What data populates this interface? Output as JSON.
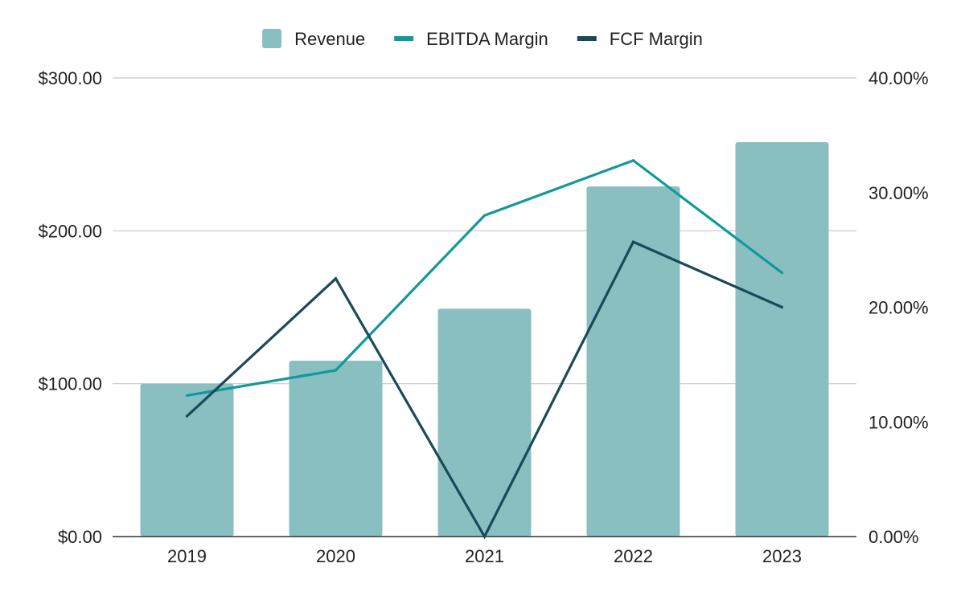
{
  "chart_data": {
    "type": "bar",
    "categories": [
      "2019",
      "2020",
      "2021",
      "2022",
      "2023"
    ],
    "series": [
      {
        "name": "Revenue",
        "kind": "bar",
        "axis": "left",
        "values": [
          100,
          115,
          149,
          229,
          258
        ]
      },
      {
        "name": "EBITDA Margin",
        "kind": "line",
        "axis": "right",
        "values": [
          12.3,
          14.5,
          28.0,
          32.8,
          23.0
        ]
      },
      {
        "name": "FCF Margin",
        "kind": "line",
        "axis": "right",
        "values": [
          10.5,
          22.5,
          0.0,
          25.7,
          20.0
        ]
      }
    ],
    "y_left": {
      "range": [
        0,
        300
      ],
      "ticks": [
        0,
        100,
        200,
        300
      ],
      "tick_labels": [
        "$0.00",
        "$100.00",
        "$200.00",
        "$300.00"
      ]
    },
    "y_right": {
      "range": [
        0,
        40
      ],
      "ticks": [
        0,
        10,
        20,
        30,
        40
      ],
      "tick_labels": [
        "0.00%",
        "10.00%",
        "20.00%",
        "30.00%",
        "40.00%"
      ]
    },
    "legend": {
      "position": "top-center",
      "items": [
        "Revenue",
        "EBITDA Margin",
        "FCF Margin"
      ]
    },
    "grid": true,
    "colors": {
      "Revenue": "#89bfc1",
      "EBITDA Margin": "#11999c",
      "FCF Margin": "#1a4a5a",
      "grid": "#c8c8c8",
      "axis": "#333333"
    }
  }
}
